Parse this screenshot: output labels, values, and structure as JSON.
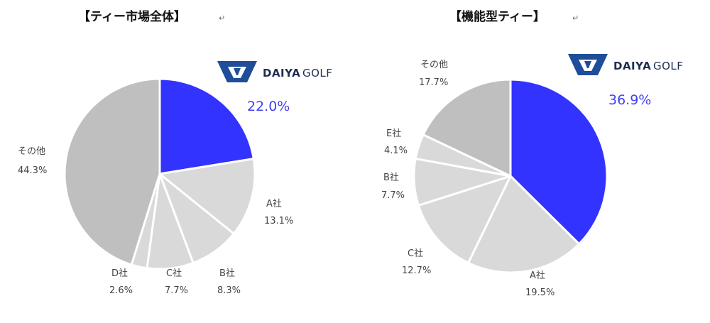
{
  "return_mark": "↵",
  "logo": {
    "brand_bold": "DAIYA",
    "brand_light": "GOLF",
    "color": "#1f4d9a"
  },
  "chart_data": [
    {
      "type": "pie",
      "title": "【ティー市場全体】",
      "slices": [
        {
          "name": "DAIYA GOLF",
          "value": 22.0,
          "label": "22.0%",
          "color": "#3333ff"
        },
        {
          "name": "A社",
          "value": 13.1,
          "label": "13.1%",
          "color": "#d9d9d9"
        },
        {
          "name": "B社",
          "value": 8.3,
          "label": "8.3%",
          "color": "#d9d9d9"
        },
        {
          "name": "C社",
          "value": 7.7,
          "label": "7.7%",
          "color": "#d9d9d9"
        },
        {
          "name": "D社",
          "value": 2.6,
          "label": "2.6%",
          "color": "#d9d9d9"
        },
        {
          "name": "その他",
          "value": 44.3,
          "label": "44.3%",
          "color": "#bfbfbf"
        }
      ]
    },
    {
      "type": "pie",
      "title": "【機能型ティー】",
      "slices": [
        {
          "name": "DAIYA GOLF",
          "value": 36.9,
          "label": "36.9%",
          "color": "#3333ff"
        },
        {
          "name": "A社",
          "value": 19.5,
          "label": "19.5%",
          "color": "#d9d9d9"
        },
        {
          "name": "C社",
          "value": 12.7,
          "label": "12.7%",
          "color": "#d9d9d9"
        },
        {
          "name": "B社",
          "value": 7.7,
          "label": "7.7%",
          "color": "#d9d9d9"
        },
        {
          "name": "E社",
          "value": 4.1,
          "label": "4.1%",
          "color": "#d9d9d9"
        },
        {
          "name": "その他",
          "value": 17.7,
          "label": "17.7%",
          "color": "#bfbfbf"
        }
      ]
    }
  ]
}
